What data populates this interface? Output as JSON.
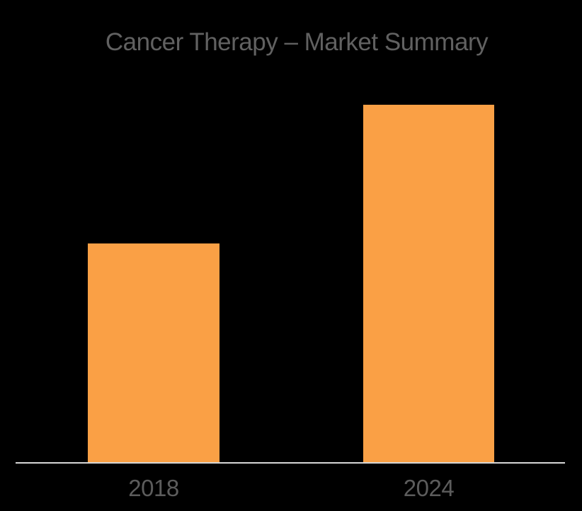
{
  "canvas": {
    "background": "#000000"
  },
  "chart_data": {
    "type": "bar",
    "title": "Cancer Therapy – Market Summary",
    "categories": [
      "2018",
      "2024"
    ],
    "values": [
      61.3,
      100
    ],
    "value_axis": "no y-axis, gridlines or data labels shown; values are relative bar heights (2018 is ~61% of 2024)",
    "xlabel": "",
    "ylabel": "",
    "series_count": 1,
    "bar_color": "#FAA045",
    "axis_line_color": "#D6D6D6",
    "title_color": "#616161",
    "tick_label_color": "#5C5C5C",
    "background_color": "#000000",
    "grid": false,
    "legend": false
  }
}
